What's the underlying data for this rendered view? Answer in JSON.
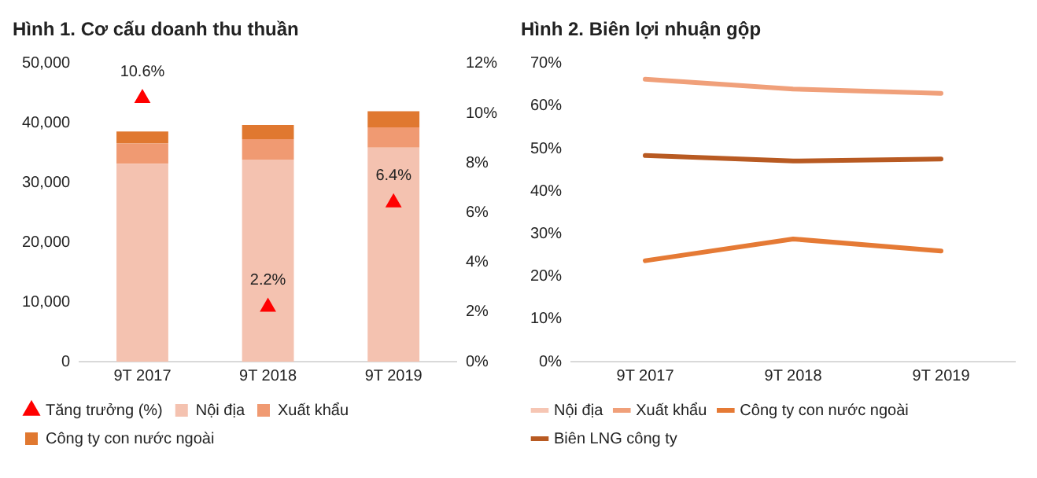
{
  "chart_data": [
    {
      "type": "bar",
      "title": "Hình 1. Cơ cấu doanh thu thuần",
      "categories": [
        "9T 2017",
        "9T 2018",
        "9T 2019"
      ],
      "stacked": true,
      "legend": "bottom",
      "grid": false,
      "series": [
        {
          "name": "Nội địa",
          "color": "#f4c2b0",
          "values": [
            33200,
            33900,
            35900
          ]
        },
        {
          "name": "Xuất khẩu",
          "color": "#f09a72",
          "values": [
            3400,
            3400,
            3400
          ]
        },
        {
          "name": "Công ty con nước ngoài",
          "color": "#e07830",
          "values": [
            2000,
            2400,
            2700
          ]
        },
        {
          "name": "Tăng trưởng (%)",
          "type": "scatter",
          "axis": "y2",
          "marker": "triangle",
          "color": "#ff0000",
          "values": [
            10.6,
            2.2,
            6.4
          ],
          "value_labels": [
            "10.6%",
            "2.2%",
            "6.4%"
          ]
        }
      ],
      "ylim": [
        0,
        50000
      ],
      "yticks": [
        {
          "value": 0,
          "label": "0"
        },
        {
          "value": 10000,
          "label": "10,000"
        },
        {
          "value": 20000,
          "label": "20,000"
        },
        {
          "value": 30000,
          "label": "30,000"
        },
        {
          "value": 40000,
          "label": "40,000"
        },
        {
          "value": 50000,
          "label": "50,000"
        }
      ],
      "y2lim": [
        0,
        12
      ],
      "y2ticks": [
        {
          "value": 0,
          "label": "0%"
        },
        {
          "value": 2,
          "label": "2%"
        },
        {
          "value": 4,
          "label": "4%"
        },
        {
          "value": 6,
          "label": "6%"
        },
        {
          "value": 8,
          "label": "8%"
        },
        {
          "value": 10,
          "label": "10%"
        },
        {
          "value": 12,
          "label": "12%"
        }
      ]
    },
    {
      "type": "line",
      "title": "Hình 2. Biên lợi nhuận gộp",
      "categories": [
        "9T 2017",
        "9T 2018",
        "9T 2019"
      ],
      "legend": "bottom",
      "grid": false,
      "marker": "none",
      "series": [
        {
          "name": "Nội địa",
          "color": "#f6c6b4",
          "values": [
            null,
            null,
            null
          ]
        },
        {
          "name": "Xuất khẩu",
          "color": "#f0a07a",
          "values": [
            66.3,
            64.0,
            63.0
          ]
        },
        {
          "name": "Công ty con nước ngoài",
          "color": "#e57a35",
          "values": [
            23.7,
            28.8,
            26.0
          ]
        },
        {
          "name": "Biên LNG công ty",
          "color": "#b85a22",
          "values": [
            48.4,
            47.1,
            47.6
          ]
        }
      ],
      "ylim": [
        0,
        70
      ],
      "yticks": [
        {
          "value": 0,
          "label": "0%"
        },
        {
          "value": 10,
          "label": "10%"
        },
        {
          "value": 20,
          "label": "20%"
        },
        {
          "value": 30,
          "label": "30%"
        },
        {
          "value": 40,
          "label": "40%"
        },
        {
          "value": 50,
          "label": "50%"
        },
        {
          "value": 60,
          "label": "60%"
        },
        {
          "value": 70,
          "label": "70%"
        }
      ]
    }
  ]
}
